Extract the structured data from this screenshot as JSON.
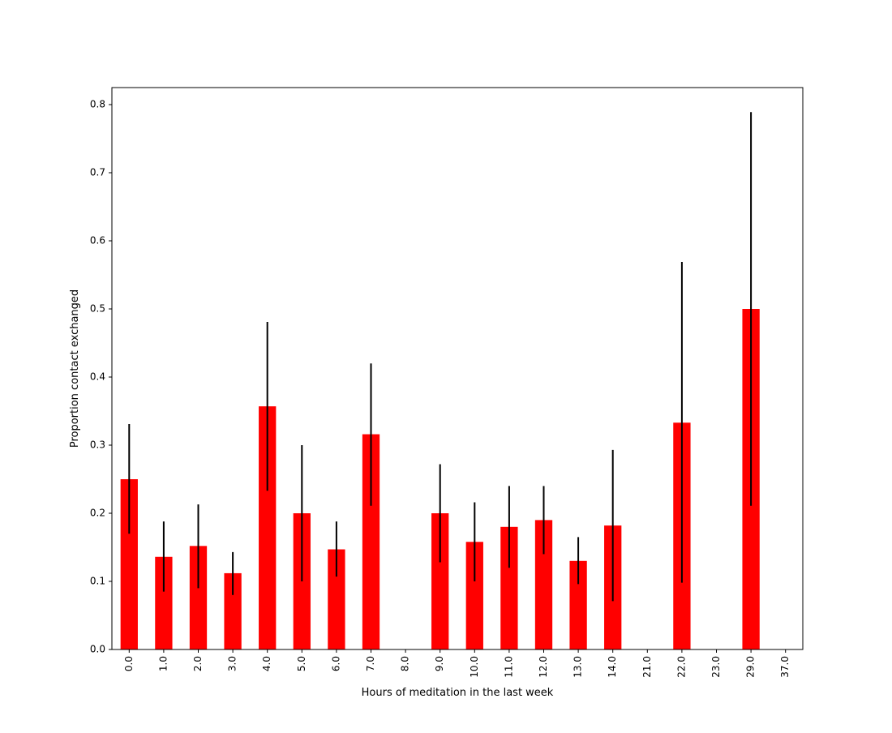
{
  "chart_data": {
    "type": "bar",
    "title": "",
    "xlabel": "Hours of meditation in the last week",
    "ylabel": "Proportion contact exchanged",
    "categories": [
      "0.0",
      "1.0",
      "2.0",
      "3.0",
      "4.0",
      "5.0",
      "6.0",
      "7.0",
      "8.0",
      "9.0",
      "10.0",
      "11.0",
      "12.0",
      "13.0",
      "14.0",
      "21.0",
      "22.0",
      "23.0",
      "29.0",
      "37.0"
    ],
    "values": [
      0.25,
      0.136,
      0.152,
      0.112,
      0.357,
      0.2,
      0.147,
      0.316,
      0.0,
      0.2,
      0.158,
      0.18,
      0.19,
      0.13,
      0.182,
      0.0,
      0.333,
      0.0,
      0.5,
      0.0
    ],
    "error_low": [
      0.17,
      0.085,
      0.09,
      0.08,
      0.233,
      0.1,
      0.107,
      0.211,
      null,
      0.128,
      0.1,
      0.12,
      0.14,
      0.096,
      0.071,
      null,
      0.098,
      null,
      0.211,
      null
    ],
    "error_high": [
      0.331,
      0.188,
      0.213,
      0.143,
      0.481,
      0.3,
      0.188,
      0.42,
      null,
      0.272,
      0.216,
      0.24,
      0.24,
      0.165,
      0.293,
      null,
      0.569,
      null,
      0.789,
      null
    ],
    "yticks": [
      "0.0",
      "0.1",
      "0.2",
      "0.3",
      "0.4",
      "0.5",
      "0.6",
      "0.7",
      "0.8"
    ],
    "ylim": [
      0,
      0.825
    ],
    "grid": false,
    "legend": "none",
    "bar_color": "#ff0000",
    "error_color": "#000000"
  }
}
